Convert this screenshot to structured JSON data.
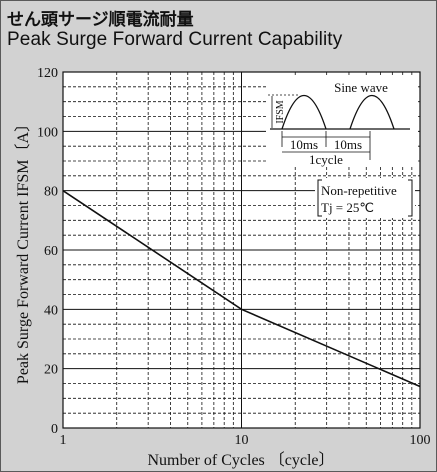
{
  "header": {
    "title_ja": "せん頭サージ順電流耐量",
    "title_en": "Peak Surge Forward Current Capability"
  },
  "chart_data": {
    "type": "line",
    "title": "Peak Surge Forward Current Capability",
    "xlabel": "Number of Cycles 〔cycle〕",
    "ylabel": "Peak Surge Forward Current  IFSM〔A〕",
    "x_scale": "log",
    "xlim": [
      1,
      100
    ],
    "ylim": [
      0,
      120
    ],
    "x_ticks": [
      "1",
      "10",
      "100"
    ],
    "y_ticks": [
      "0",
      "20",
      "40",
      "60",
      "80",
      "100",
      "120"
    ],
    "grid": true,
    "series": [
      {
        "x": [
          1,
          10,
          100
        ],
        "y": [
          80,
          40,
          14
        ]
      }
    ],
    "inset": {
      "label": "Sine wave",
      "ifsm_label": "IFSM",
      "period1": "10ms",
      "period2": "10ms",
      "cycle_label": "1cycle"
    },
    "annotation": {
      "line1": "Non-repetitive",
      "line2": "Tj = 25℃"
    }
  }
}
